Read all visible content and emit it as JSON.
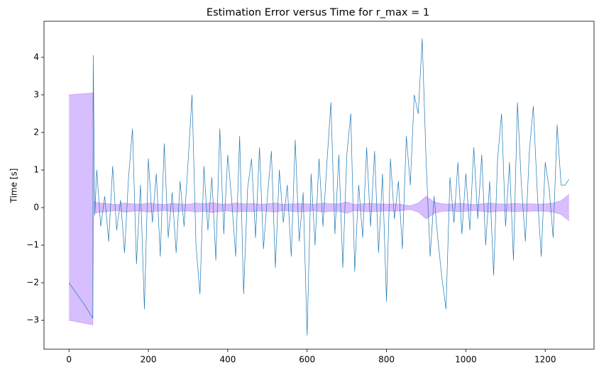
{
  "chart_data": {
    "type": "line",
    "title": "Estimation Error versus Time for r_max = 1",
    "ylabel": "Time [s]",
    "xlim": [
      -63,
      1323
    ],
    "ylim": [
      -3.77,
      4.96
    ],
    "xticks": [
      0,
      200,
      400,
      600,
      800,
      1000,
      1200
    ],
    "yticks": [
      {
        "value": -3,
        "label": "−3"
      },
      {
        "value": -2,
        "label": "−2"
      },
      {
        "value": -1,
        "label": "−1"
      },
      0,
      1,
      2,
      3,
      4
    ],
    "grid": false,
    "series": [
      {
        "color": "#1f77b4",
        "x": [
          0,
          20,
          40,
          60,
          61,
          65,
          70,
          80,
          90,
          100,
          110,
          120,
          130,
          140,
          150,
          160,
          170,
          180,
          190,
          200,
          210,
          220,
          230,
          240,
          250,
          260,
          270,
          280,
          290,
          300,
          310,
          320,
          330,
          340,
          350,
          360,
          370,
          380,
          390,
          400,
          410,
          420,
          430,
          440,
          450,
          460,
          470,
          480,
          490,
          500,
          510,
          520,
          530,
          540,
          550,
          560,
          570,
          580,
          590,
          600,
          610,
          620,
          630,
          640,
          650,
          660,
          670,
          680,
          690,
          700,
          710,
          720,
          730,
          740,
          750,
          760,
          770,
          780,
          790,
          800,
          810,
          820,
          830,
          840,
          850,
          860,
          870,
          880,
          890,
          900,
          910,
          920,
          930,
          940,
          950,
          960,
          970,
          980,
          990,
          1000,
          1010,
          1020,
          1030,
          1040,
          1050,
          1060,
          1070,
          1080,
          1090,
          1100,
          1110,
          1120,
          1130,
          1140,
          1150,
          1160,
          1170,
          1180,
          1190,
          1200,
          1210,
          1220,
          1230,
          1240,
          1250,
          1260
        ],
        "values": [
          -2.0,
          -2.3,
          -2.6,
          -2.95,
          4.05,
          -0.2,
          1.0,
          -0.5,
          0.3,
          -0.9,
          1.1,
          -0.6,
          0.2,
          -1.2,
          0.8,
          2.1,
          -1.5,
          0.6,
          -2.7,
          1.3,
          -0.4,
          0.9,
          -1.3,
          1.7,
          -0.8,
          0.4,
          -1.2,
          0.7,
          -0.5,
          1.2,
          3.0,
          -1.0,
          -2.3,
          1.1,
          -0.6,
          0.8,
          -1.4,
          2.1,
          -0.7,
          1.4,
          0.2,
          -1.3,
          1.9,
          -2.3,
          0.5,
          1.3,
          -0.8,
          1.6,
          -1.1,
          0.3,
          1.5,
          -1.6,
          1.0,
          -0.4,
          0.6,
          -1.3,
          1.8,
          -0.9,
          0.4,
          -3.4,
          0.9,
          -1.0,
          1.3,
          -0.5,
          1.2,
          2.8,
          -0.7,
          1.4,
          -1.6,
          1.4,
          2.5,
          -1.7,
          0.6,
          -0.8,
          1.6,
          -0.5,
          1.5,
          -1.2,
          0.9,
          -2.5,
          1.3,
          -0.3,
          0.7,
          -1.1,
          1.9,
          0.6,
          3.0,
          2.5,
          4.5,
          1.2,
          -1.3,
          0.3,
          -0.9,
          -1.9,
          -2.7,
          0.8,
          -0.4,
          1.2,
          -0.7,
          0.9,
          -0.6,
          1.6,
          -0.3,
          1.4,
          -1.0,
          0.7,
          -1.8,
          1.3,
          2.5,
          -0.5,
          1.2,
          -1.4,
          2.8,
          0.6,
          -0.9,
          1.5,
          2.7,
          0.4,
          -1.3,
          1.2,
          0.5,
          -0.8,
          2.2,
          0.6,
          0.6,
          0.75
        ]
      }
    ],
    "band": {
      "color": "#c9a8ff",
      "edge_color": "#b45fd6",
      "x": [
        0,
        60,
        62,
        80,
        100,
        120,
        140,
        160,
        180,
        200,
        220,
        240,
        260,
        280,
        300,
        320,
        340,
        360,
        380,
        400,
        420,
        440,
        460,
        480,
        500,
        520,
        540,
        560,
        580,
        600,
        620,
        640,
        660,
        680,
        700,
        720,
        740,
        760,
        780,
        800,
        820,
        840,
        860,
        880,
        900,
        920,
        940,
        960,
        980,
        1000,
        1020,
        1040,
        1060,
        1080,
        1100,
        1120,
        1140,
        1160,
        1180,
        1200,
        1220,
        1240,
        1260
      ],
      "upper": [
        3.0,
        3.05,
        0.15,
        0.12,
        0.1,
        0.08,
        0.12,
        0.1,
        0.09,
        0.12,
        0.1,
        0.08,
        0.11,
        0.1,
        0.09,
        0.12,
        0.1,
        0.13,
        0.1,
        0.09,
        0.12,
        0.1,
        0.11,
        0.09,
        0.1,
        0.12,
        0.08,
        0.1,
        0.11,
        0.1,
        0.09,
        0.12,
        0.1,
        0.1,
        0.15,
        0.08,
        0.1,
        0.11,
        0.1,
        0.09,
        0.1,
        0.08,
        0.05,
        0.12,
        0.3,
        0.15,
        0.1,
        0.09,
        0.11,
        0.1,
        0.08,
        0.1,
        0.12,
        0.1,
        0.09,
        0.11,
        0.1,
        0.1,
        0.09,
        0.1,
        0.12,
        0.18,
        0.35
      ],
      "lower": [
        -3.0,
        -3.12,
        -0.15,
        -0.12,
        -0.1,
        -0.08,
        -0.12,
        -0.1,
        -0.09,
        -0.12,
        -0.1,
        -0.08,
        -0.11,
        -0.1,
        -0.09,
        -0.12,
        -0.1,
        -0.13,
        -0.1,
        -0.09,
        -0.12,
        -0.1,
        -0.11,
        -0.09,
        -0.1,
        -0.12,
        -0.08,
        -0.1,
        -0.11,
        -0.1,
        -0.09,
        -0.12,
        -0.1,
        -0.1,
        -0.15,
        -0.08,
        -0.1,
        -0.11,
        -0.1,
        -0.09,
        -0.1,
        -0.08,
        -0.05,
        -0.12,
        -0.3,
        -0.15,
        -0.1,
        -0.09,
        -0.11,
        -0.1,
        -0.08,
        -0.1,
        -0.12,
        -0.1,
        -0.09,
        -0.11,
        -0.1,
        -0.1,
        -0.09,
        -0.1,
        -0.12,
        -0.18,
        -0.35
      ]
    }
  }
}
